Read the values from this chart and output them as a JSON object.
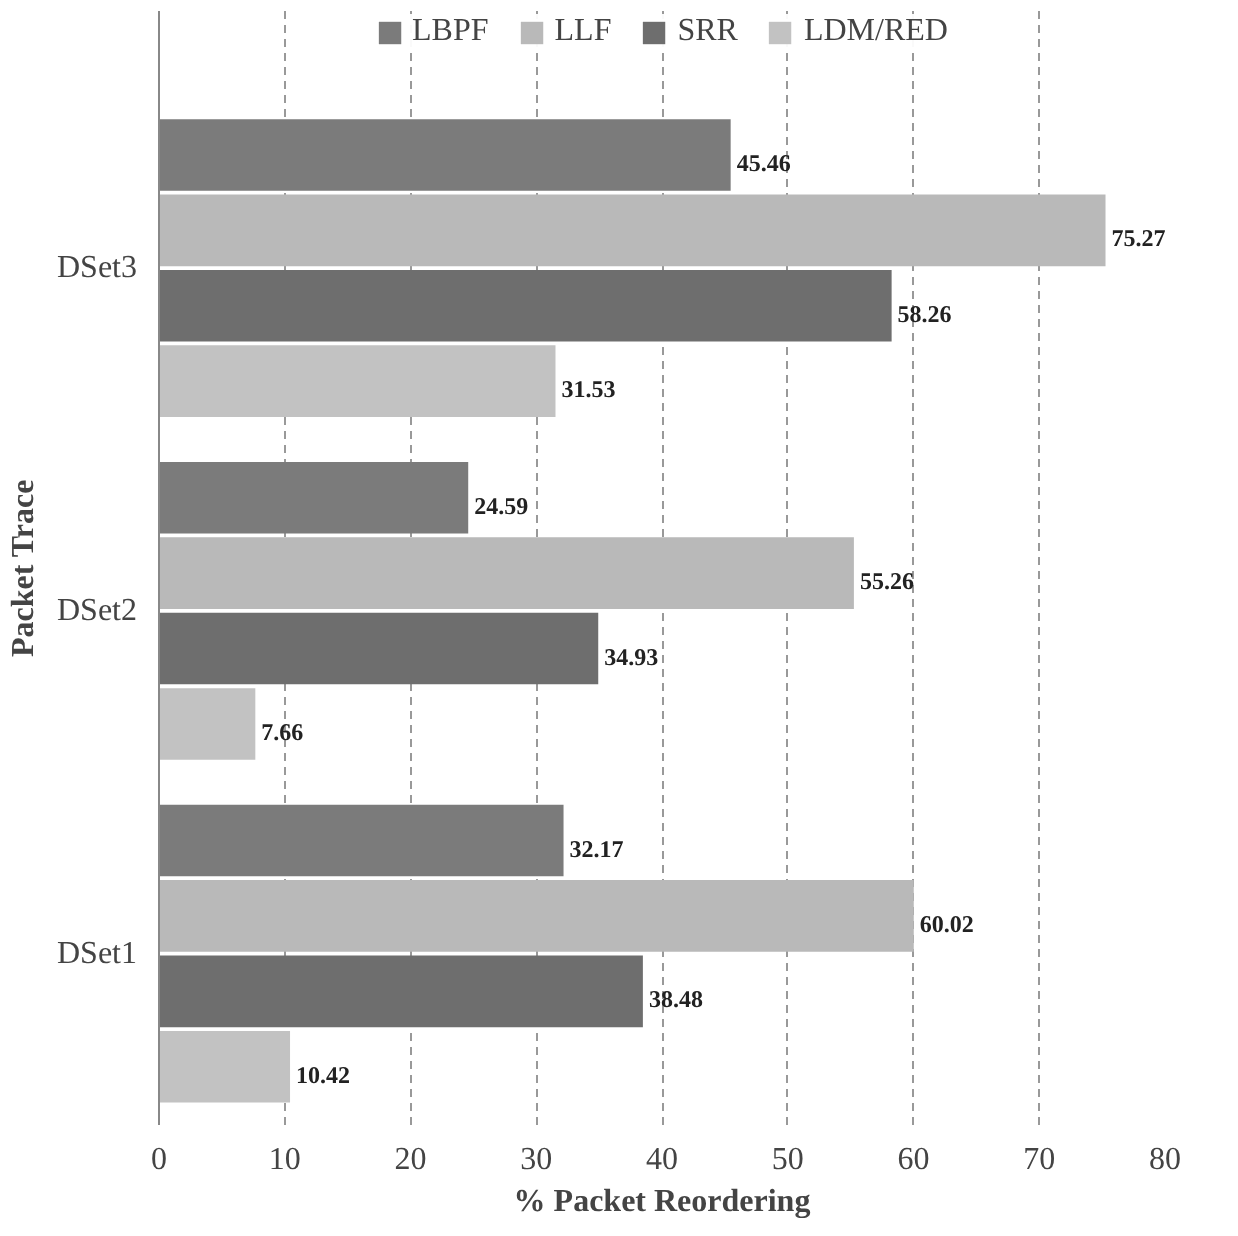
{
  "chart_data": {
    "type": "bar",
    "orientation": "horizontal",
    "xlabel": "% Packet Reordering",
    "ylabel": "Packet Trace",
    "categories": [
      "DSet3",
      "DSet2",
      "DSet1"
    ],
    "series": [
      {
        "name": "LBPF",
        "color": "#7b7b7b",
        "values": [
          45.46,
          24.59,
          32.17
        ]
      },
      {
        "name": "LLF",
        "color": "#b9b9b9",
        "values": [
          75.27,
          55.26,
          60.02
        ]
      },
      {
        "name": "SRR",
        "color": "#6e6e6e",
        "values": [
          58.26,
          34.93,
          38.48
        ]
      },
      {
        "name": "LDM/RED",
        "color": "#c2c2c2",
        "values": [
          31.53,
          7.66,
          10.42
        ]
      }
    ],
    "xlim": [
      0,
      80
    ],
    "xticks": [
      0,
      10,
      20,
      30,
      40,
      50,
      60,
      70,
      80
    ],
    "grid": "x",
    "legend": "top",
    "data_labels": true
  }
}
